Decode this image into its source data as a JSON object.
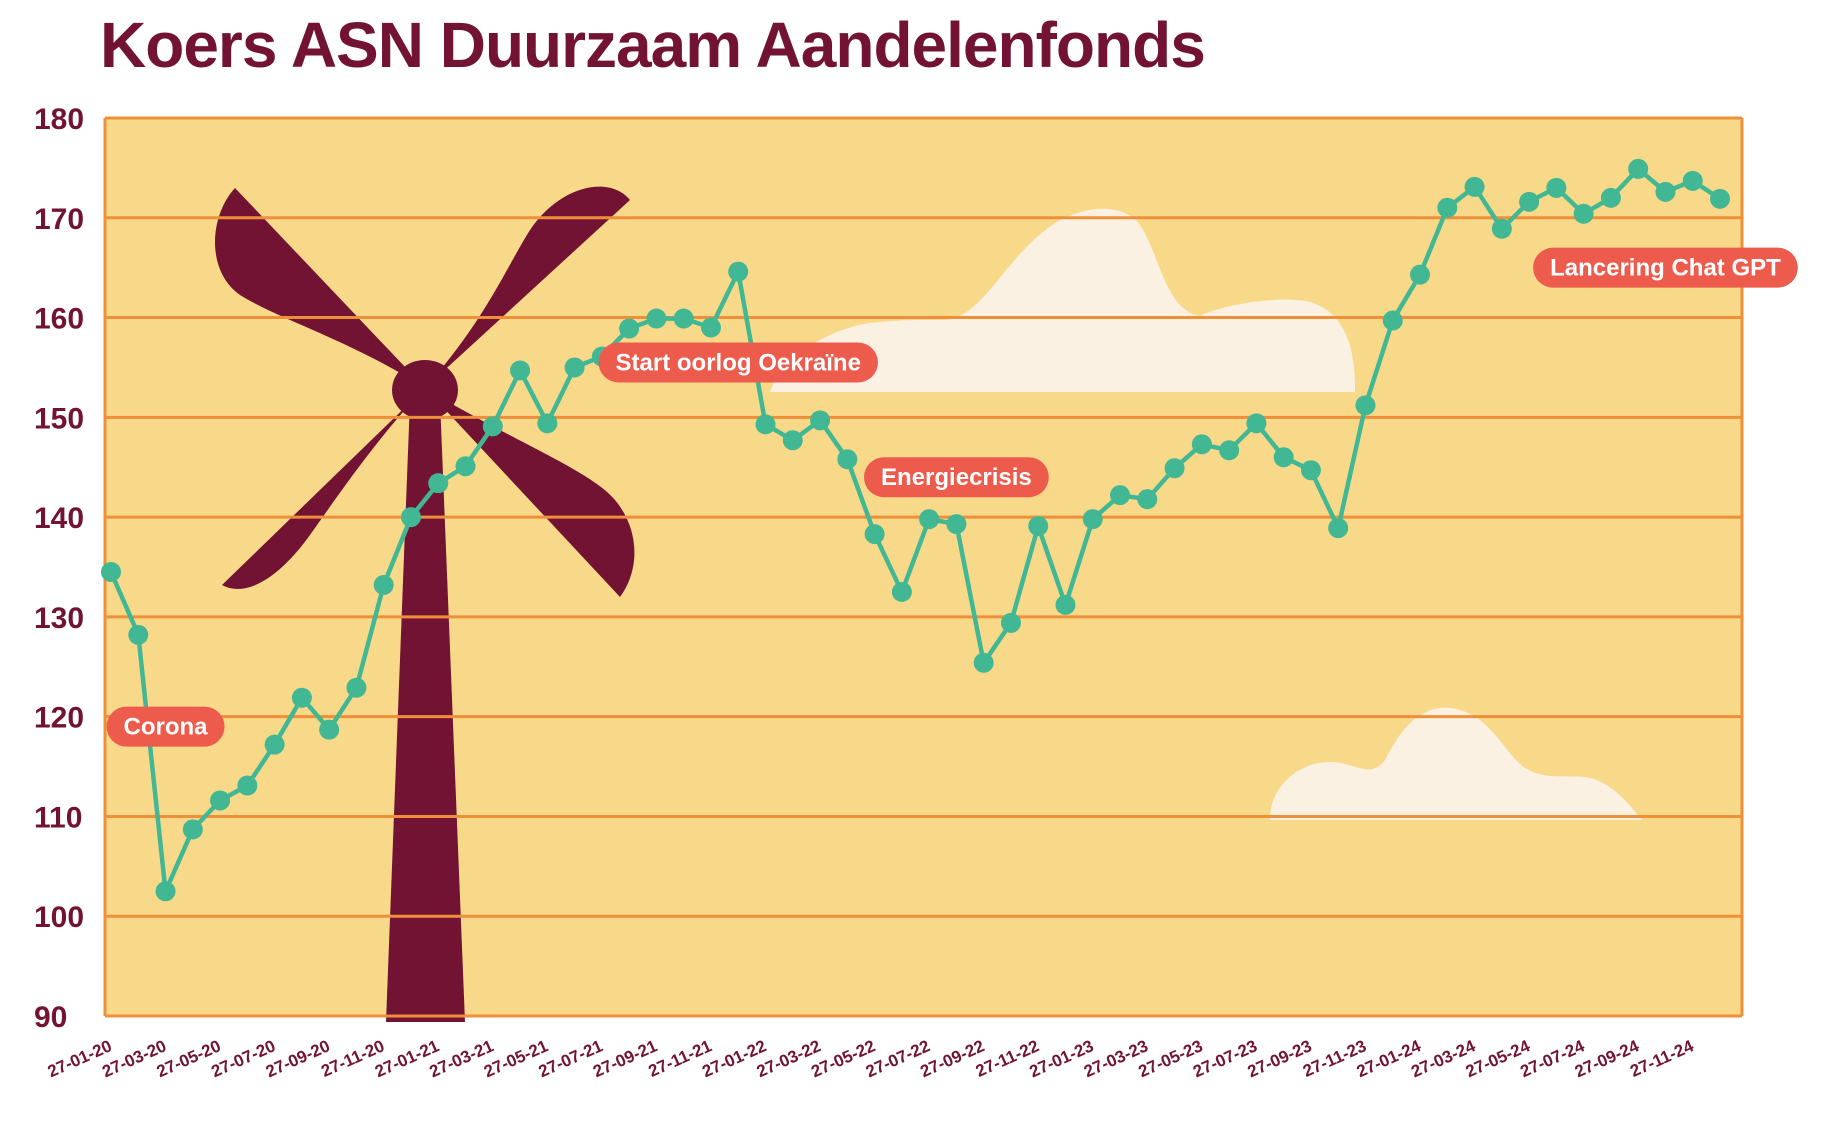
{
  "chart_data": {
    "type": "line",
    "title": "Koers ASN Duurzaam Aandelenfonds",
    "xlabel": "",
    "ylabel": "",
    "ylim": [
      90,
      180
    ],
    "yticks": [
      90,
      100,
      110,
      120,
      130,
      140,
      150,
      160,
      170,
      180
    ],
    "grid": true,
    "colors": {
      "background": "#F8D98A",
      "grid": "#EE8F3A",
      "line": "#42B794",
      "text": "#731334",
      "annotation": "#EC5B4C",
      "cloud": "#FBF1E3",
      "windmill": "#731334"
    },
    "xtick_labels": [
      "27-01-20",
      "27-03-20",
      "27-05-20",
      "27-07-20",
      "27-09-20",
      "27-11-20",
      "27-01-21",
      "27-03-21",
      "27-05-21",
      "27-07-21",
      "27-09-21",
      "27-11-21",
      "27-01-22",
      "27-03-22",
      "27-05-22",
      "27-07-22",
      "27-09-22",
      "27-11-22",
      "27-01-23",
      "27-03-23",
      "27-05-23",
      "27-07-23",
      "27-09-23",
      "27-11-23",
      "27-01-24",
      "27-03-24",
      "27-05-24",
      "27-07-24",
      "27-09-24",
      "27-11-24"
    ],
    "x": [
      "27-01-20",
      "27-02-20",
      "27-03-20",
      "27-04-20",
      "27-05-20",
      "27-06-20",
      "27-07-20",
      "27-08-20",
      "27-09-20",
      "27-10-20",
      "27-11-20",
      "27-12-20",
      "27-01-21",
      "27-02-21",
      "27-03-21",
      "27-04-21",
      "27-05-21",
      "27-06-21",
      "27-07-21",
      "27-08-21",
      "27-09-21",
      "27-10-21",
      "27-11-21",
      "27-12-21",
      "27-01-22",
      "27-02-22",
      "27-03-22",
      "27-04-22",
      "27-05-22",
      "27-06-22",
      "27-07-22",
      "27-08-22",
      "27-09-22",
      "27-10-22",
      "27-11-22",
      "27-12-22",
      "27-01-23",
      "27-02-23",
      "27-03-23",
      "27-04-23",
      "27-05-23",
      "27-06-23",
      "27-07-23",
      "27-08-23",
      "27-09-23",
      "27-10-23",
      "27-11-23",
      "27-12-23",
      "27-01-24",
      "27-02-24",
      "27-03-24",
      "27-04-24",
      "27-05-24",
      "27-06-24",
      "27-07-24",
      "27-08-24",
      "27-09-24",
      "27-10-24",
      "27-11-24",
      "27-12-24"
    ],
    "series": [
      {
        "values": [
          134.5,
          128.2,
          102.5,
          108.7,
          111.6,
          113.1,
          117.2,
          121.9,
          118.7,
          122.9,
          133.2,
          140.0,
          143.4,
          145.1,
          149.1,
          154.7,
          149.4,
          155.0,
          156.1,
          158.9,
          159.9,
          159.9,
          159.0,
          164.6,
          149.3,
          147.7,
          149.7,
          145.8,
          138.3,
          132.5,
          139.8,
          139.3,
          125.4,
          129.4,
          139.1,
          131.2,
          139.8,
          142.2,
          141.8,
          144.9,
          147.3,
          146.7,
          149.4,
          146.0,
          144.7,
          138.9,
          151.2,
          159.7,
          164.3,
          171.0,
          173.1,
          168.9,
          171.6,
          173.0,
          170.4,
          172.0,
          174.9,
          172.6,
          173.7,
          171.9
        ]
      }
    ],
    "annotations": [
      {
        "text": "Corona",
        "x": "27-03-20",
        "y": 119
      },
      {
        "text": "Start oorlog Oekraïne",
        "x": "27-12-21",
        "y": 155.5
      },
      {
        "text": "Energiecrisis",
        "x": "27-08-22",
        "y": 144
      },
      {
        "text": "Lancering Chat GPT",
        "x": "27-10-24",
        "y": 165
      }
    ]
  }
}
